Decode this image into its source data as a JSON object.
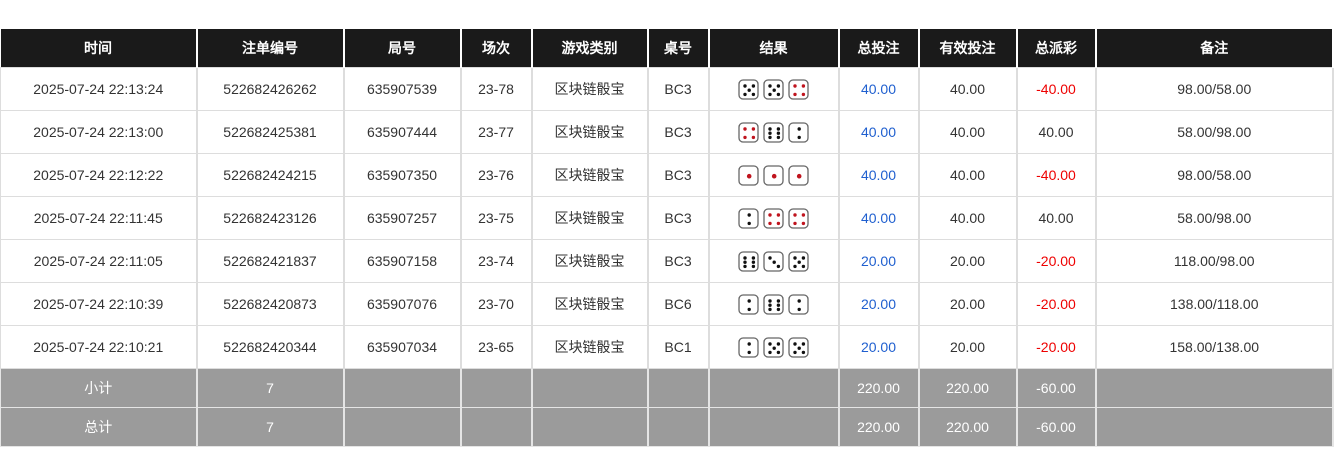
{
  "headers": [
    "时间",
    "注单编号",
    "局号",
    "场次",
    "游戏类别",
    "桌号",
    "结果",
    "总投注",
    "有效投注",
    "总派彩",
    "备注"
  ],
  "rows": [
    {
      "time": "2025-07-24 22:13:24",
      "order": "522682426262",
      "round": "635907539",
      "session": "23-78",
      "game": "区块链骰宝",
      "table": "BC3",
      "dice": [
        5,
        5,
        4
      ],
      "bet": "40.00",
      "valid": "40.00",
      "payout": "-40.00",
      "note": "98.00/58.00"
    },
    {
      "time": "2025-07-24 22:13:00",
      "order": "522682425381",
      "round": "635907444",
      "session": "23-77",
      "game": "区块链骰宝",
      "table": "BC3",
      "dice": [
        4,
        6,
        2
      ],
      "bet": "40.00",
      "valid": "40.00",
      "payout": "40.00",
      "note": "58.00/98.00"
    },
    {
      "time": "2025-07-24 22:12:22",
      "order": "522682424215",
      "round": "635907350",
      "session": "23-76",
      "game": "区块链骰宝",
      "table": "BC3",
      "dice": [
        1,
        1,
        1
      ],
      "bet": "40.00",
      "valid": "40.00",
      "payout": "-40.00",
      "note": "98.00/58.00"
    },
    {
      "time": "2025-07-24 22:11:45",
      "order": "522682423126",
      "round": "635907257",
      "session": "23-75",
      "game": "区块链骰宝",
      "table": "BC3",
      "dice": [
        2,
        4,
        4
      ],
      "bet": "40.00",
      "valid": "40.00",
      "payout": "40.00",
      "note": "58.00/98.00"
    },
    {
      "time": "2025-07-24 22:11:05",
      "order": "522682421837",
      "round": "635907158",
      "session": "23-74",
      "game": "区块链骰宝",
      "table": "BC3",
      "dice": [
        6,
        3,
        5
      ],
      "bet": "20.00",
      "valid": "20.00",
      "payout": "-20.00",
      "note": "118.00/98.00"
    },
    {
      "time": "2025-07-24 22:10:39",
      "order": "522682420873",
      "round": "635907076",
      "session": "23-70",
      "game": "区块链骰宝",
      "table": "BC6",
      "dice": [
        2,
        6,
        2
      ],
      "bet": "20.00",
      "valid": "20.00",
      "payout": "-20.00",
      "note": "138.00/118.00"
    },
    {
      "time": "2025-07-24 22:10:21",
      "order": "522682420344",
      "round": "635907034",
      "session": "23-65",
      "game": "区块链骰宝",
      "table": "BC1",
      "dice": [
        2,
        5,
        5
      ],
      "bet": "20.00",
      "valid": "20.00",
      "payout": "-20.00",
      "note": "158.00/138.00"
    }
  ],
  "summary": [
    {
      "label": "小计",
      "count": "7",
      "bet": "220.00",
      "valid": "220.00",
      "payout": "-60.00"
    },
    {
      "label": "总计",
      "count": "7",
      "bet": "220.00",
      "valid": "220.00",
      "payout": "-60.00"
    }
  ],
  "colors": {
    "header_bg": "#1a1a1a",
    "bet": "#1f5fcf",
    "negative": "#e00000",
    "summary_bg": "#9b9b9b",
    "red_pip": "#c0141e"
  }
}
